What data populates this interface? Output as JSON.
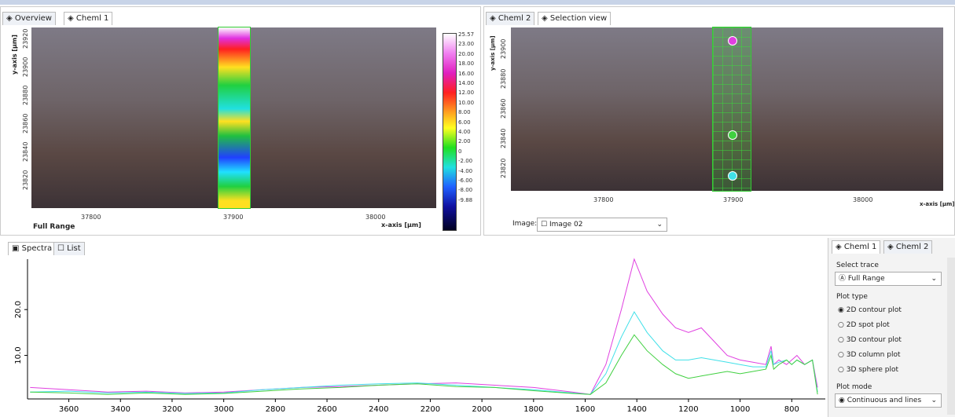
{
  "left_panel": {
    "tabs": [
      "Overview",
      "Cheml 1"
    ],
    "y_axis_label": "y-axis [µm]",
    "x_axis_label": "x-axis [µm]",
    "x_ticks": [
      "37800",
      "37900",
      "38000"
    ],
    "y_ticks": [
      "23920",
      "23900",
      "23880",
      "23860",
      "23840",
      "23820"
    ],
    "trace_label": "Full Range",
    "colorbar_labels": [
      "25.57",
      "23.00",
      "20.00",
      "18.00",
      "16.00",
      "14.00",
      "12.00",
      "10.00",
      "8.00",
      "6.00",
      "4.00",
      "2.00",
      "0",
      "-2.00",
      "-4.00",
      "-6.00",
      "-8.00",
      "-9.88"
    ]
  },
  "right_panel": {
    "tabs": [
      "Cheml 2",
      "Selection view"
    ],
    "y_axis_label": "y-axis [µm]",
    "x_axis_label": "x-axis [µm]",
    "x_ticks": [
      "37800",
      "37900",
      "38000"
    ],
    "y_ticks": [
      "23900",
      "23880",
      "23860",
      "23840",
      "23820"
    ],
    "image_label": "Image:",
    "image_value": "Image 02"
  },
  "spectra": {
    "tabs": [
      "Spectra",
      "List"
    ],
    "xlim": [
      3760,
      670
    ],
    "ylim": [
      0.5,
      31
    ],
    "xticks": [
      3600,
      3400,
      3200,
      3000,
      2800,
      2600,
      2400,
      2200,
      2000,
      1800,
      1600,
      1400,
      1200,
      1000,
      800
    ],
    "yticks": [
      {
        "value": 10,
        "label": "10.0"
      },
      {
        "value": 20,
        "label": "20.0"
      }
    ],
    "x": [
      3750,
      3600,
      3450,
      3300,
      3150,
      3000,
      2850,
      2700,
      2550,
      2400,
      2250,
      2100,
      1950,
      1800,
      1650,
      1580,
      1520,
      1460,
      1410,
      1360,
      1300,
      1250,
      1200,
      1150,
      1100,
      1050,
      1000,
      950,
      900,
      880,
      870,
      850,
      820,
      800,
      780,
      750,
      720,
      700
    ],
    "series": [
      {
        "color": "#e040e0",
        "values": [
          3,
          2.5,
          2,
          2.2,
          1.8,
          2,
          2.5,
          3,
          3.2,
          3.5,
          3.8,
          4,
          3.5,
          3,
          2,
          1.5,
          8,
          20,
          31,
          24,
          19,
          16,
          15,
          16,
          13,
          10,
          9,
          8.5,
          8,
          12,
          8,
          9,
          8,
          9,
          10,
          8,
          9,
          3
        ]
      },
      {
        "color": "#40e0e8",
        "values": [
          2,
          2.2,
          1.8,
          2,
          1.7,
          1.8,
          2.5,
          3,
          3.5,
          3.8,
          4,
          3.5,
          3,
          2.5,
          1.8,
          1.5,
          6,
          14,
          19.5,
          15,
          11,
          9,
          9,
          9.5,
          9,
          8.5,
          8,
          7.5,
          7.5,
          11,
          8,
          8.5,
          9,
          8,
          9,
          8,
          9,
          2
        ]
      },
      {
        "color": "#40d040",
        "values": [
          2,
          1.8,
          1.5,
          1.8,
          1.5,
          1.7,
          2.2,
          2.7,
          3,
          3.5,
          3.8,
          3.2,
          3,
          2.3,
          1.7,
          1.5,
          4,
          10,
          14.5,
          11,
          8,
          6,
          5,
          5.5,
          6,
          6.5,
          6,
          6.5,
          7,
          10,
          7,
          8,
          9,
          8,
          9,
          8,
          9,
          1.5
        ]
      }
    ]
  },
  "sidebar": {
    "tabs": [
      "Cheml 1",
      "Cheml 2"
    ],
    "select_trace_label": "Select trace",
    "select_trace_value": "Full Range",
    "plot_type_label": "Plot type",
    "plot_types": [
      "2D contour plot",
      "2D spot plot",
      "3D contour plot",
      "3D column plot",
      "3D sphere plot"
    ],
    "plot_mode_label": "Plot mode",
    "plot_mode_value": "Continuous and lines"
  }
}
